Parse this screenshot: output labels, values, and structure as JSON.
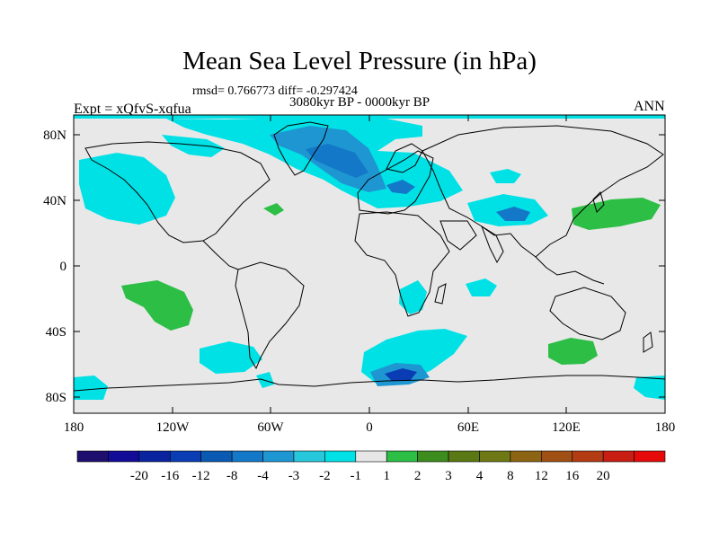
{
  "header": {
    "title": "Mean Sea Level Pressure (in hPa)",
    "stats": "rmsd= 0.766773 diff= -0.297424",
    "period": "3080kyr BP - 0000kyr BP",
    "experiment": "Expt = xQfvS-xqfua",
    "season": "ANN"
  },
  "axes": {
    "lat_labels": [
      "80N",
      "40N",
      "0",
      "40S",
      "80S"
    ],
    "lon_labels": [
      "180",
      "120W",
      "60W",
      "0",
      "60E",
      "120E",
      "180"
    ]
  },
  "colorbar": {
    "colors": [
      "#1e0f6e",
      "#120c96",
      "#0a24a0",
      "#0a3cb4",
      "#0a5ab4",
      "#1478c8",
      "#1e96d2",
      "#28c8dc",
      "#00e1e6",
      "#e6e6e6",
      "#2dbe46",
      "#3c8c1e",
      "#5a7814",
      "#6e7814",
      "#8c6414",
      "#a05014",
      "#b43c14",
      "#c81e14",
      "#e60a0a"
    ],
    "labels": [
      "-20",
      "-16",
      "-12",
      "-8",
      "-4",
      "-3",
      "-2",
      "-1",
      "1",
      "2",
      "3",
      "4",
      "8",
      "12",
      "16",
      "20"
    ]
  },
  "colors": {
    "background": "#e8e8e8",
    "cyan": "#00e1e6",
    "light_blue": "#1e96d2",
    "mid_blue": "#1478c8",
    "dark_blue": "#0a3cb4",
    "green": "#2dbe46",
    "coast": "#000000"
  }
}
